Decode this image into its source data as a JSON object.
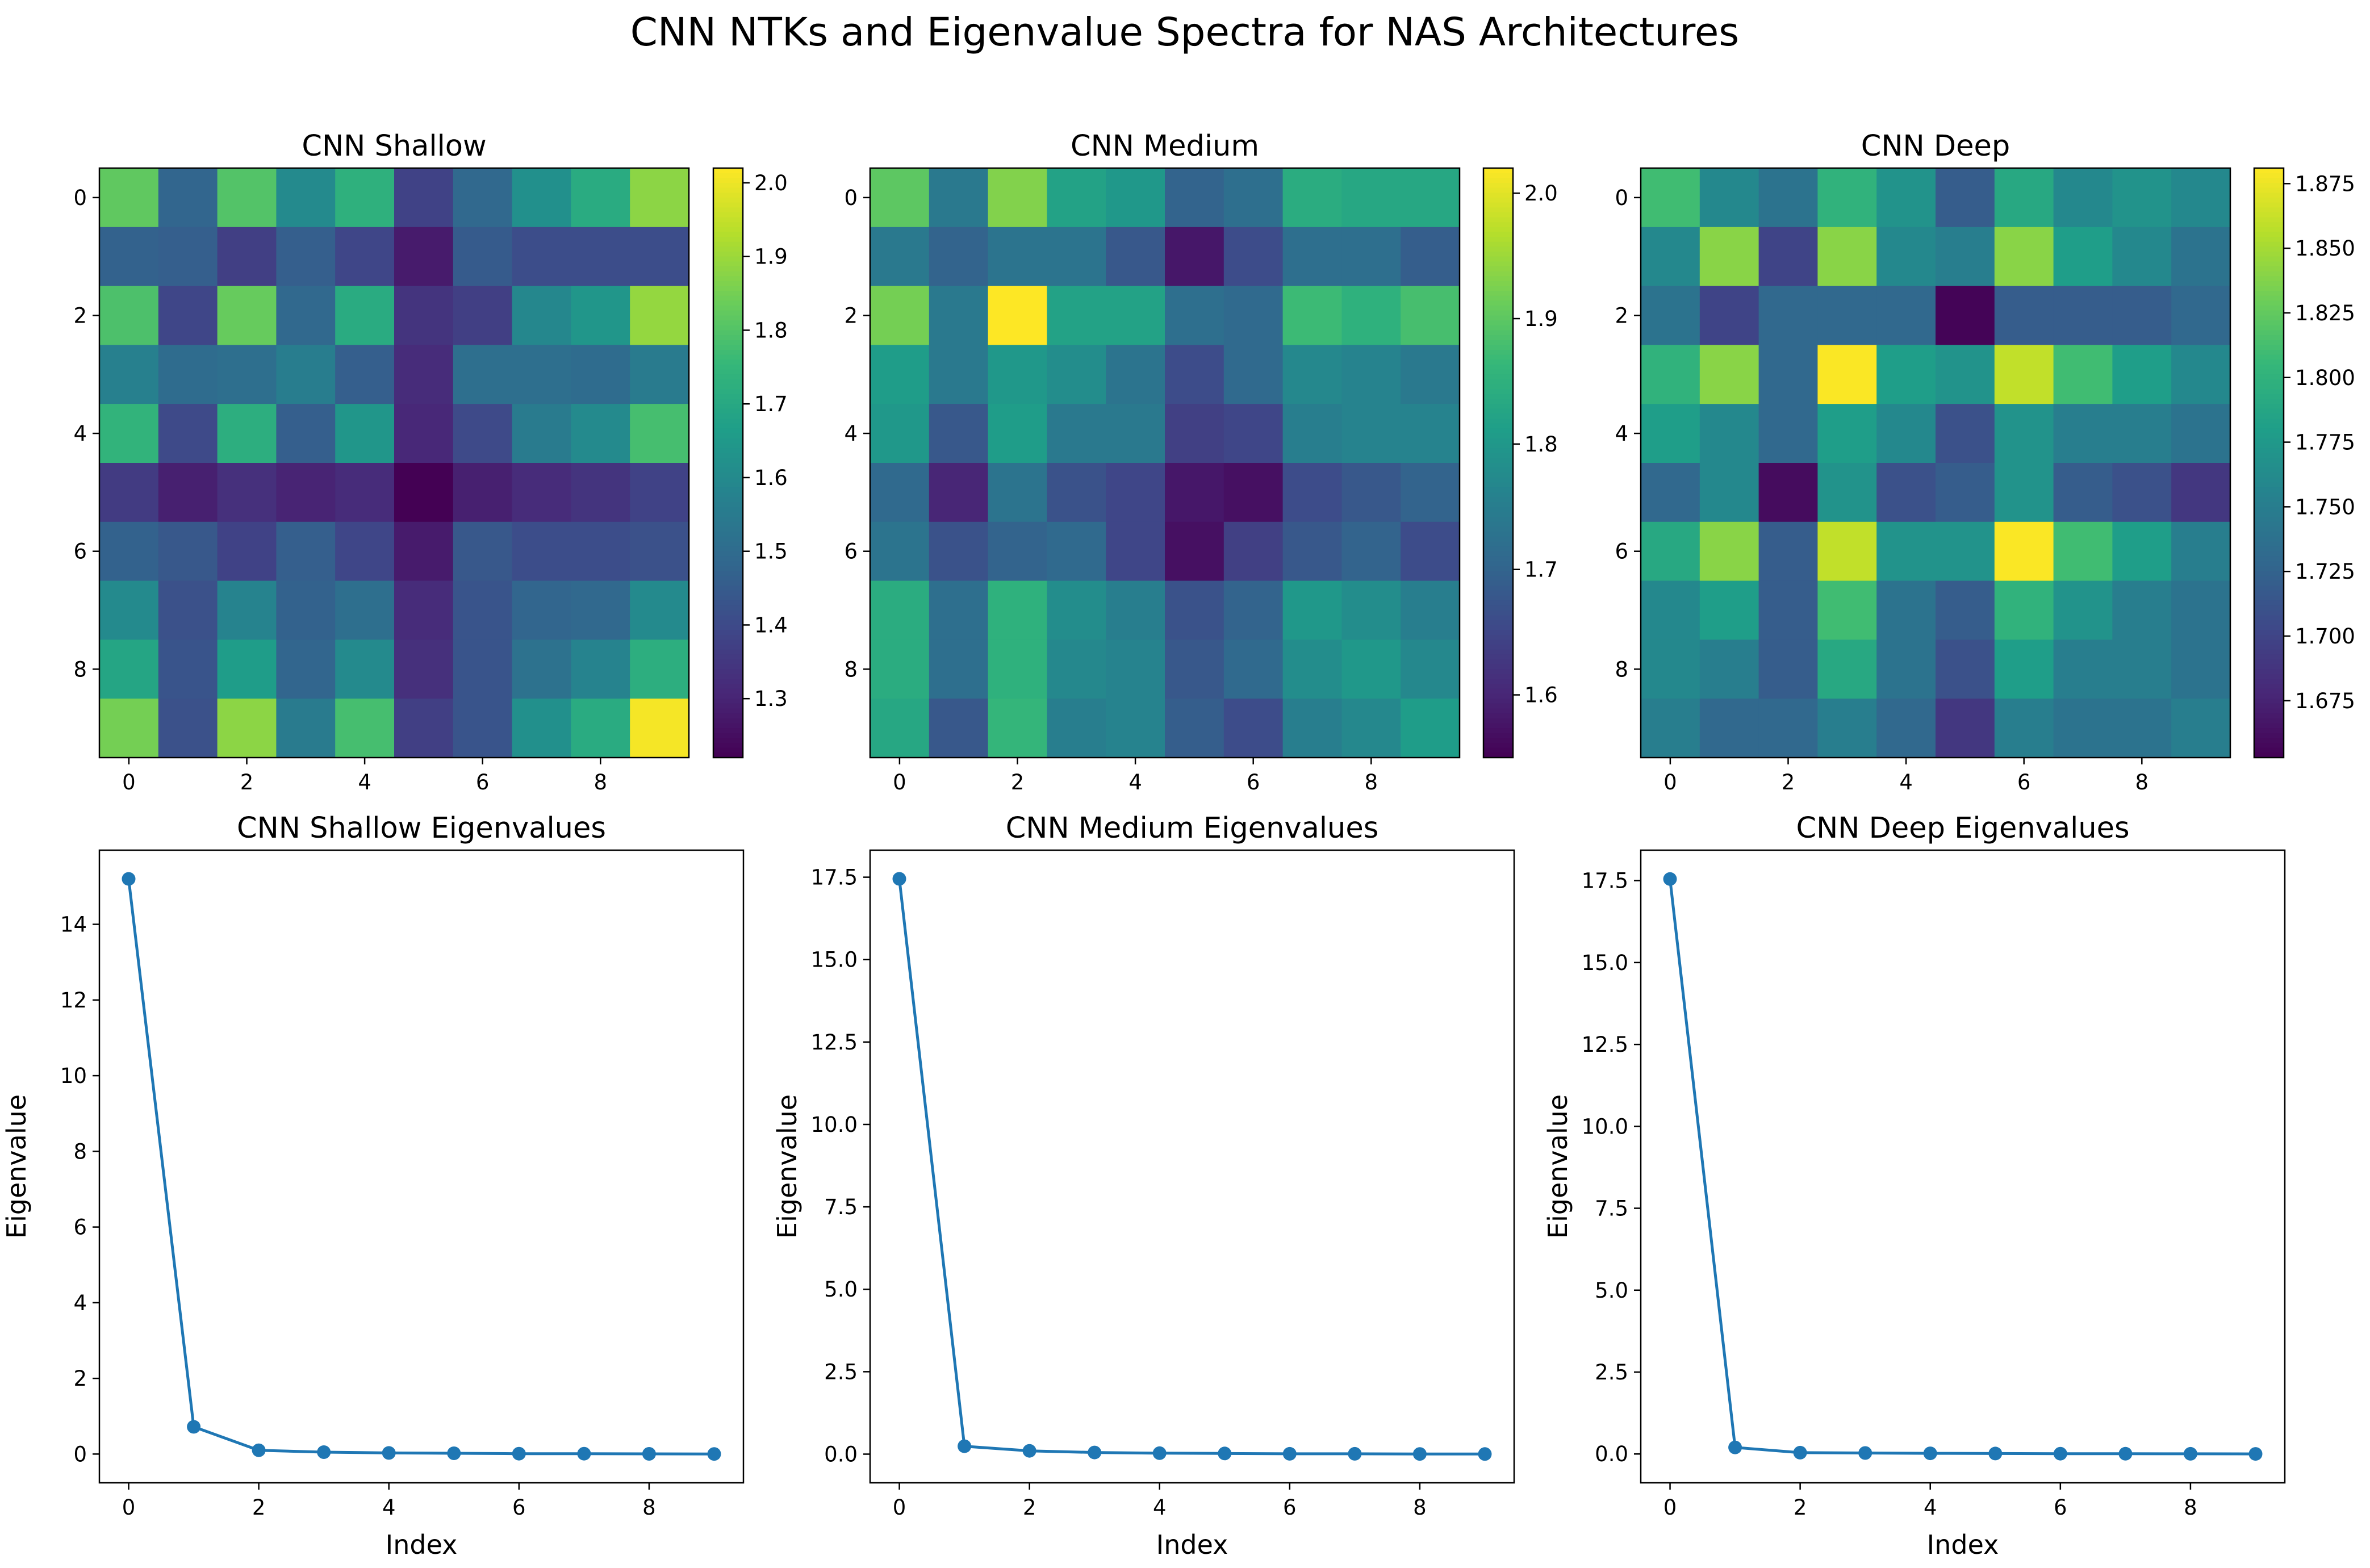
{
  "figure": {
    "title": "CNN NTKs and Eigenvalue Spectra for NAS Architectures"
  },
  "colormap": {
    "name": "viridis",
    "stops": [
      "#440154",
      "#482878",
      "#3e4989",
      "#31688e",
      "#26828e",
      "#1f9e89",
      "#35b779",
      "#6ece58",
      "#b5de2b",
      "#fde725"
    ]
  },
  "line_color": "#1f77b4",
  "chart_data": [
    {
      "type": "heatmap",
      "title": "CNN Shallow",
      "x_ticks": [
        0,
        2,
        4,
        6,
        8
      ],
      "y_ticks": [
        0,
        2,
        4,
        6,
        8
      ],
      "vmin": 1.22,
      "vmax": 2.02,
      "colorbar_ticks": [
        "1.3",
        "1.4",
        "1.5",
        "1.6",
        "1.7",
        "1.8",
        "1.9",
        "2.0"
      ],
      "values": [
        [
          1.82,
          1.48,
          1.8,
          1.6,
          1.73,
          1.38,
          1.49,
          1.62,
          1.71,
          1.88
        ],
        [
          1.47,
          1.46,
          1.37,
          1.46,
          1.39,
          1.28,
          1.45,
          1.41,
          1.41,
          1.41
        ],
        [
          1.79,
          1.39,
          1.83,
          1.49,
          1.71,
          1.34,
          1.37,
          1.59,
          1.64,
          1.89
        ],
        [
          1.57,
          1.5,
          1.51,
          1.56,
          1.46,
          1.32,
          1.51,
          1.51,
          1.5,
          1.55
        ],
        [
          1.74,
          1.4,
          1.72,
          1.46,
          1.64,
          1.31,
          1.4,
          1.55,
          1.6,
          1.78
        ],
        [
          1.36,
          1.29,
          1.33,
          1.3,
          1.32,
          1.22,
          1.29,
          1.32,
          1.34,
          1.38
        ],
        [
          1.47,
          1.44,
          1.38,
          1.46,
          1.39,
          1.28,
          1.44,
          1.41,
          1.41,
          1.42
        ],
        [
          1.6,
          1.42,
          1.58,
          1.47,
          1.51,
          1.32,
          1.43,
          1.48,
          1.49,
          1.6
        ],
        [
          1.69,
          1.43,
          1.66,
          1.48,
          1.6,
          1.33,
          1.43,
          1.52,
          1.58,
          1.72
        ],
        [
          1.85,
          1.42,
          1.88,
          1.55,
          1.78,
          1.37,
          1.43,
          1.62,
          1.71,
          2.01
        ]
      ]
    },
    {
      "type": "heatmap",
      "title": "CNN Medium",
      "x_ticks": [
        0,
        2,
        4,
        6,
        8
      ],
      "y_ticks": [
        0,
        2,
        4,
        6,
        8
      ],
      "vmin": 1.55,
      "vmax": 2.02,
      "colorbar_ticks": [
        "1.6",
        "1.7",
        "1.8",
        "1.9",
        "2.0"
      ],
      "values": [
        [
          1.9,
          1.74,
          1.93,
          1.82,
          1.8,
          1.7,
          1.72,
          1.84,
          1.83,
          1.83
        ],
        [
          1.74,
          1.7,
          1.73,
          1.73,
          1.68,
          1.58,
          1.66,
          1.72,
          1.72,
          1.69
        ],
        [
          1.92,
          1.74,
          2.02,
          1.82,
          1.82,
          1.72,
          1.71,
          1.87,
          1.85,
          1.88
        ],
        [
          1.81,
          1.74,
          1.8,
          1.78,
          1.73,
          1.66,
          1.71,
          1.77,
          1.76,
          1.74
        ],
        [
          1.8,
          1.68,
          1.81,
          1.74,
          1.74,
          1.64,
          1.65,
          1.75,
          1.76,
          1.76
        ],
        [
          1.71,
          1.6,
          1.73,
          1.67,
          1.65,
          1.58,
          1.57,
          1.66,
          1.68,
          1.7
        ],
        [
          1.73,
          1.67,
          1.7,
          1.71,
          1.65,
          1.57,
          1.64,
          1.68,
          1.7,
          1.66
        ],
        [
          1.84,
          1.72,
          1.85,
          1.78,
          1.75,
          1.67,
          1.7,
          1.8,
          1.78,
          1.75
        ],
        [
          1.84,
          1.72,
          1.85,
          1.77,
          1.76,
          1.68,
          1.71,
          1.78,
          1.8,
          1.77
        ],
        [
          1.83,
          1.68,
          1.86,
          1.75,
          1.76,
          1.69,
          1.66,
          1.75,
          1.77,
          1.81
        ]
      ]
    },
    {
      "type": "heatmap",
      "title": "CNN Deep",
      "x_ticks": [
        0,
        2,
        4,
        6,
        8
      ],
      "y_ticks": [
        0,
        2,
        4,
        6,
        8
      ],
      "vmin": 1.653,
      "vmax": 1.881,
      "colorbar_ticks": [
        "1.675",
        "1.700",
        "1.725",
        "1.750",
        "1.775",
        "1.800",
        "1.825",
        "1.850",
        "1.875"
      ],
      "values": [
        [
          1.81,
          1.76,
          1.74,
          1.8,
          1.77,
          1.72,
          1.79,
          1.76,
          1.77,
          1.76
        ],
        [
          1.76,
          1.84,
          1.7,
          1.84,
          1.76,
          1.75,
          1.84,
          1.78,
          1.76,
          1.74
        ],
        [
          1.74,
          1.7,
          1.73,
          1.73,
          1.73,
          1.655,
          1.72,
          1.72,
          1.72,
          1.73
        ],
        [
          1.8,
          1.84,
          1.73,
          1.88,
          1.78,
          1.77,
          1.86,
          1.81,
          1.78,
          1.76
        ],
        [
          1.78,
          1.76,
          1.73,
          1.78,
          1.76,
          1.71,
          1.77,
          1.75,
          1.75,
          1.74
        ],
        [
          1.73,
          1.76,
          1.66,
          1.77,
          1.71,
          1.72,
          1.77,
          1.72,
          1.71,
          1.69
        ],
        [
          1.79,
          1.84,
          1.72,
          1.86,
          1.77,
          1.77,
          1.88,
          1.81,
          1.78,
          1.75
        ],
        [
          1.76,
          1.78,
          1.72,
          1.81,
          1.74,
          1.72,
          1.8,
          1.77,
          1.75,
          1.74
        ],
        [
          1.76,
          1.75,
          1.72,
          1.79,
          1.74,
          1.71,
          1.78,
          1.75,
          1.75,
          1.74
        ],
        [
          1.75,
          1.73,
          1.73,
          1.75,
          1.73,
          1.69,
          1.75,
          1.74,
          1.74,
          1.75
        ]
      ]
    },
    {
      "type": "line",
      "title": "CNN Shallow Eigenvalues",
      "xlabel": "Index",
      "ylabel": "Eigenvalue",
      "x": [
        0,
        1,
        2,
        3,
        4,
        5,
        6,
        7,
        8,
        9
      ],
      "y": [
        15.2,
        0.72,
        0.1,
        0.05,
        0.03,
        0.02,
        0.01,
        0.01,
        0.005,
        0.003
      ],
      "xlim": [
        -0.45,
        9.45
      ],
      "ylim": [
        -0.76,
        15.96
      ],
      "x_ticks": [
        0,
        2,
        4,
        6,
        8
      ],
      "y_ticks": [
        0,
        2,
        4,
        6,
        8,
        10,
        12,
        14
      ],
      "y_tick_labels": [
        "0",
        "2",
        "4",
        "6",
        "8",
        "10",
        "12",
        "14"
      ]
    },
    {
      "type": "line",
      "title": "CNN Medium Eigenvalues",
      "xlabel": "Index",
      "ylabel": "Eigenvalue",
      "x": [
        0,
        1,
        2,
        3,
        4,
        5,
        6,
        7,
        8,
        9
      ],
      "y": [
        17.45,
        0.24,
        0.1,
        0.05,
        0.03,
        0.02,
        0.01,
        0.01,
        0.005,
        0.003
      ],
      "xlim": [
        -0.45,
        9.45
      ],
      "ylim": [
        -0.87,
        18.32
      ],
      "x_ticks": [
        0,
        2,
        4,
        6,
        8
      ],
      "y_ticks": [
        0,
        2.5,
        5,
        7.5,
        10,
        12.5,
        15,
        17.5
      ],
      "y_tick_labels": [
        "0.0",
        "2.5",
        "5.0",
        "7.5",
        "10.0",
        "12.5",
        "15.0",
        "17.5"
      ]
    },
    {
      "type": "line",
      "title": "CNN Deep Eigenvalues",
      "xlabel": "Index",
      "ylabel": "Eigenvalue",
      "x": [
        0,
        1,
        2,
        3,
        4,
        5,
        6,
        7,
        8,
        9
      ],
      "y": [
        17.55,
        0.2,
        0.04,
        0.03,
        0.02,
        0.015,
        0.01,
        0.008,
        0.005,
        0.003
      ],
      "xlim": [
        -0.45,
        9.45
      ],
      "ylim": [
        -0.88,
        18.43
      ],
      "x_ticks": [
        0,
        2,
        4,
        6,
        8
      ],
      "y_ticks": [
        0,
        2.5,
        5,
        7.5,
        10,
        12.5,
        15,
        17.5
      ],
      "y_tick_labels": [
        "0.0",
        "2.5",
        "5.0",
        "7.5",
        "10.0",
        "12.5",
        "15.0",
        "17.5"
      ]
    }
  ]
}
